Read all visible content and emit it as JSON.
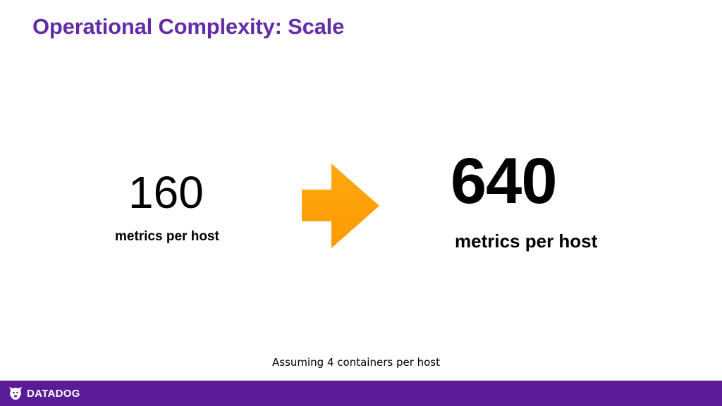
{
  "slide": {
    "title": "Operational Complexity: Scale",
    "before": {
      "value": "160",
      "label": "metrics per host"
    },
    "after": {
      "value": "640",
      "label": "metrics per host"
    },
    "footnote": "Assuming 4 containers per host",
    "arrow_icon": "right-arrow-icon"
  },
  "footer": {
    "brand": "DATADOG",
    "logo_icon": "datadog-dog-icon"
  },
  "colors": {
    "title": "#632ca6",
    "arrow": "#ffa10a",
    "footer_bar": "#5a1c96",
    "text": "#000000",
    "background": "#ffffff"
  }
}
